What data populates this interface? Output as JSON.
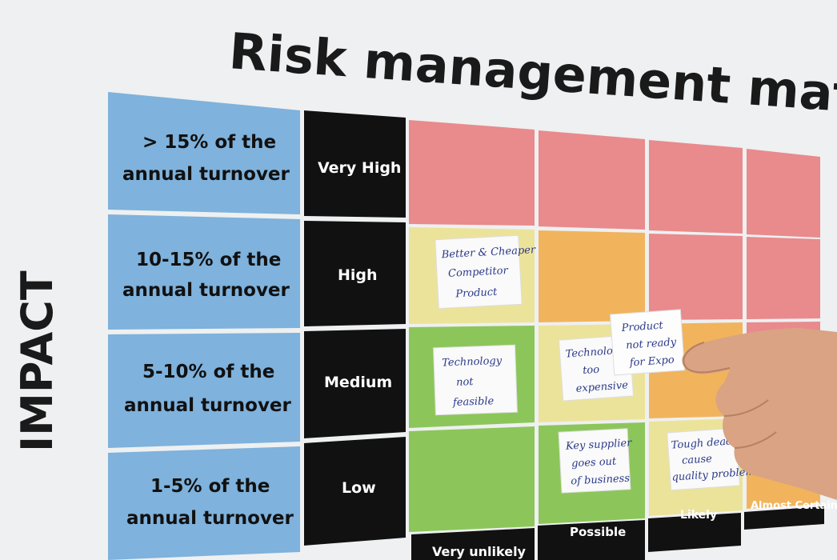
{
  "title": "Risk management matrix",
  "axis_label": "IMPACT",
  "impact_rows": [
    {
      "description_line1": "> 15% of the",
      "description_line2": "annual turnover",
      "level": "Very High"
    },
    {
      "description_line1": "10-15% of the",
      "description_line2": "annual turnover",
      "level": "High"
    },
    {
      "description_line1": "5-10% of the",
      "description_line2": "annual turnover",
      "level": "Medium"
    },
    {
      "description_line1": "1-5% of the",
      "description_line2": "annual turnover",
      "level": "Low"
    }
  ],
  "likelihood_columns": [
    "Very unlikely",
    "Possible",
    "Likely",
    "Almost Certain"
  ],
  "colors": {
    "red": "#e98a8c",
    "orange": "#f1b45c",
    "yellow": "#ece39a",
    "green": "#8cc65a",
    "blue": "#7fb2dc",
    "black": "#111111"
  },
  "sticky_notes": [
    {
      "lines": [
        "Better & Cheaper",
        "Competitor",
        "Product"
      ]
    },
    {
      "lines": [
        "Technology",
        "not",
        "feasible"
      ]
    },
    {
      "lines": [
        "Technology",
        "too",
        "expensive"
      ]
    },
    {
      "lines": [
        "Product",
        "not ready",
        "for Expo"
      ]
    },
    {
      "lines": [
        "Key supplier",
        "goes out",
        "of business"
      ]
    },
    {
      "lines": [
        "Tough deadline",
        "cause",
        "quality problems"
      ]
    }
  ]
}
